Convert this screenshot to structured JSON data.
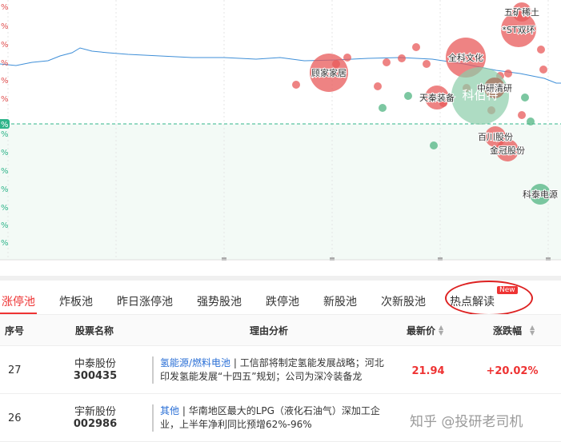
{
  "chart": {
    "axis_labels": [
      "%",
      "%",
      "%",
      "%",
      "%",
      "%",
      "%",
      "%",
      "%",
      "%",
      "%",
      "%",
      "%",
      "%"
    ],
    "bubble_labels": [
      "五矿稀土",
      "*ST双环",
      "全科文化",
      "顾家家居",
      "天秦装备",
      "科伯特",
      "中研清研",
      "百川股份",
      "金冠股份",
      "科泰电源"
    ]
  },
  "tabs": {
    "items": [
      "涨停池",
      "炸板池",
      "昨日涨停池",
      "强势股池",
      "跌停池",
      "新股池",
      "次新股池",
      "热点解读"
    ],
    "badge": "New"
  },
  "table": {
    "headers": [
      "序号",
      "股票名称",
      "理由分析",
      "最新价",
      "涨跌幅"
    ],
    "rows": [
      {
        "no": "27",
        "name": "中泰股份",
        "code": "300435",
        "tag": "氢能源/燃料电池",
        "reason": "工信部将制定氢能发展战略；河北印发氢能发展“十四五”规划；公司为深冷装备龙",
        "price": "21.94",
        "change": "+20.02%"
      },
      {
        "no": "26",
        "name": "宇新股份",
        "code": "002986",
        "tag": "其他",
        "reason": "华南地区最大的LPG（液化石油气）深加工企业，上半年净利同比预增62%-96%"
      }
    ]
  },
  "watermark": "知乎 @投研老司机"
}
